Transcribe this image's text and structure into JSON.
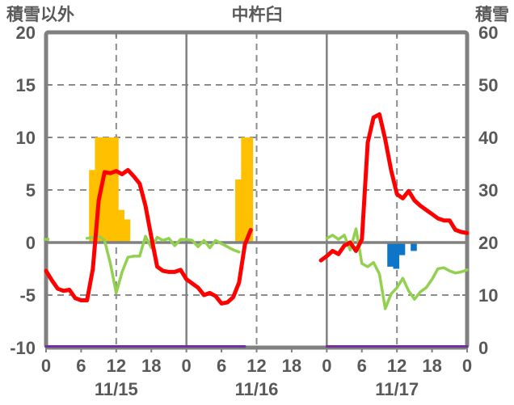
{
  "header": {
    "left_axis_title": "積雪以外",
    "chart_title": "中杵臼",
    "right_axis_title": "積雪"
  },
  "chart_data": {
    "type": "line",
    "title": "中杵臼",
    "left_axis": {
      "label": "積雪以外",
      "min": -10,
      "max": 20,
      "tick_step": 5,
      "tick_labels": [
        "20",
        "15",
        "10",
        "5",
        "0",
        "-5",
        "-10"
      ]
    },
    "right_axis": {
      "label": "積雪",
      "min": 0,
      "max": 60,
      "tick_step": 10,
      "tick_labels": [
        "60",
        "50",
        "40",
        "30",
        "20",
        "10",
        "0"
      ]
    },
    "x_axis": {
      "hours_total": 72,
      "tick_every_hours": 6,
      "hour_labels": [
        "0",
        "6",
        "12",
        "18",
        "0",
        "6",
        "12",
        "18",
        "0",
        "6",
        "12",
        "18",
        "0"
      ],
      "date_labels": [
        "11/15",
        "11/16",
        "11/17"
      ],
      "date_label_center_hours": [
        12,
        36,
        60
      ]
    },
    "grid": {
      "horizontal_dashed_at": [
        15,
        10,
        5,
        -5
      ],
      "zero_line_at": 0,
      "vertical_dashed_at_hours": [
        12,
        36,
        60
      ],
      "vertical_solid_at_hours": [
        24,
        48
      ]
    },
    "colors": {
      "red_line": "#FF0000",
      "green_line": "#92D050",
      "orange_bars": "#FFC000",
      "blue_bars": "#0E76C8",
      "purple_line": "#7030A0",
      "axis": "#808080",
      "grid": "#8C8C8C",
      "text": "#595959"
    },
    "series": [
      {
        "name": "orange-bars",
        "type": "bar",
        "axis": "left",
        "color_key": "orange_bars",
        "points": [
          {
            "hour": 7,
            "value": 6.9
          },
          {
            "hour": 8,
            "value": 10
          },
          {
            "hour": 9,
            "value": 10
          },
          {
            "hour": 10,
            "value": 10
          },
          {
            "hour": 11,
            "value": 10
          },
          {
            "hour": 12,
            "value": 3.1
          },
          {
            "hour": 13,
            "value": 2.2
          },
          {
            "hour": 32,
            "value": 6.0
          },
          {
            "hour": 33,
            "value": 10
          },
          {
            "hour": 34,
            "value": 10
          }
        ]
      },
      {
        "name": "blue-bars",
        "type": "bar",
        "axis": "left",
        "color_key": "blue_bars",
        "points": [
          {
            "hour": 58,
            "value": -2.3
          },
          {
            "hour": 59,
            "value": -2.5
          },
          {
            "hour": 60,
            "value": -1.2
          },
          {
            "hour": 62,
            "value": -0.8
          }
        ]
      },
      {
        "name": "purple-line",
        "type": "line",
        "axis": "right",
        "color_key": "purple_line",
        "hourly_values": [
          0,
          0,
          0,
          0,
          0,
          0,
          0,
          0,
          0,
          0,
          0,
          0,
          0,
          0,
          0,
          0,
          0,
          0,
          0,
          0,
          0,
          0,
          0,
          0,
          0,
          0,
          0,
          0,
          0,
          0,
          0,
          0,
          0,
          0,
          0,
          null,
          null,
          null,
          null,
          null,
          null,
          null,
          null,
          null,
          null,
          null,
          null,
          null,
          0,
          0,
          0,
          0,
          0,
          0,
          0,
          0,
          0,
          0,
          0,
          0,
          0,
          0,
          0,
          0,
          0,
          0,
          0,
          0,
          0,
          0,
          0,
          0,
          0
        ]
      },
      {
        "name": "green-line",
        "type": "line",
        "axis": "left",
        "color_key": "green_line",
        "hourly_values": [
          0.3,
          null,
          null,
          null,
          null,
          null,
          null,
          0.4,
          0.5,
          0.6,
          0.2,
          -2.0,
          -4.8,
          -2.8,
          -1.4,
          -1.3,
          -1.3,
          0.6,
          -0.5,
          0.5,
          0.2,
          0.4,
          -0.3,
          0.3,
          0.3,
          0.2,
          -0.4,
          0.2,
          -0.5,
          0.2,
          -0.1,
          -0.4,
          -0.7,
          -0.9,
          null,
          null,
          null,
          null,
          null,
          null,
          null,
          null,
          null,
          null,
          null,
          null,
          null,
          null,
          0.4,
          0.7,
          0.3,
          0.7,
          -0.7,
          1.3,
          -2.0,
          -2.3,
          -1.9,
          -3.0,
          -6.3,
          -4.9,
          -4.3,
          -3.4,
          -4.6,
          -5.4,
          -4.7,
          -4.3,
          -3.5,
          -2.5,
          -2.4,
          -2.7,
          -2.9,
          -2.8,
          -2.6
        ]
      },
      {
        "name": "red-line",
        "type": "line",
        "axis": "left",
        "color_key": "red_line",
        "hourly_values": [
          -2.7,
          -3.6,
          -4.4,
          -4.6,
          -4.5,
          -5.3,
          -5.5,
          -5.5,
          -2.5,
          4.0,
          6.7,
          6.6,
          6.8,
          6.5,
          6.9,
          6.3,
          5.6,
          3.5,
          0.5,
          -2.3,
          -2.7,
          -2.8,
          -2.8,
          -2.6,
          -3.5,
          -3.9,
          -4.3,
          -5.0,
          -4.8,
          -5.1,
          -5.8,
          -5.7,
          -5.2,
          -3.8,
          -0.2,
          1.2,
          null,
          null,
          null,
          null,
          null,
          null,
          null,
          null,
          null,
          null,
          null,
          -1.7,
          -1.3,
          -0.8,
          -1.1,
          -0.3,
          0.0,
          -0.8,
          0.3,
          9.5,
          11.9,
          12.2,
          9.8,
          6.9,
          4.6,
          4.2,
          4.9,
          4.0,
          3.5,
          3.1,
          2.7,
          2.3,
          2.1,
          2.1,
          1.2,
          1.0,
          0.9
        ]
      }
    ]
  }
}
